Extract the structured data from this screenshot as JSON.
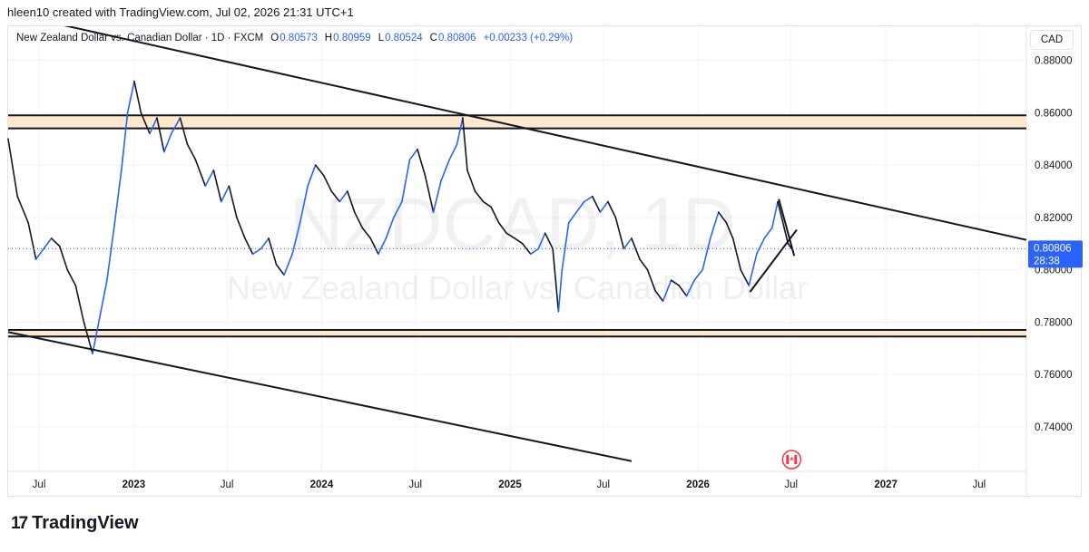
{
  "header": {
    "attribution": "hleen10 created with TradingView.com, Jul 02, 2026 21:31 UTC+1"
  },
  "legend": {
    "symbol": "New Zealand Dollar vs. Canadian Dollar · 1D · FXCM",
    "o_label": "O",
    "o_value": "0.80573",
    "h_label": "H",
    "h_value": "0.80959",
    "l_label": "L",
    "l_value": "0.80524",
    "c_label": "C",
    "c_value": "0.80806",
    "change": "+0.00233 (+0.29%)"
  },
  "currency": "CAD",
  "watermark": {
    "ticker": "NZDCAD, 1D",
    "name": "New Zealand Dollar vs. Canadian Dollar"
  },
  "price_tag": {
    "price": "0.80806",
    "countdown": "28:38"
  },
  "brand": {
    "logo": "17",
    "name": "TradingView"
  },
  "colors": {
    "up": "#2962ff",
    "down": "#131722",
    "zone_fill": "#ffe9cc",
    "drawing": "#131722",
    "price_tag": "#2962ff",
    "flag_red": "#f23645"
  },
  "chart_data": {
    "type": "line",
    "instrument": "NZDCAD",
    "interval": "1D",
    "ylim": [
      0.723,
      0.893
    ],
    "xlim": [
      "2022-05-02",
      "2027-10-01"
    ],
    "y_ticks": [
      "0.88000",
      "0.86000",
      "0.84000",
      "0.82000",
      "0.80000",
      "0.78000",
      "0.76000",
      "0.74000"
    ],
    "x_ticks": [
      {
        "label": "Jul",
        "date": "2022-07-01",
        "bold": false
      },
      {
        "label": "2023",
        "date": "2023-01-01",
        "bold": true
      },
      {
        "label": "Jul",
        "date": "2023-07-01",
        "bold": false
      },
      {
        "label": "2024",
        "date": "2024-01-01",
        "bold": true
      },
      {
        "label": "Jul",
        "date": "2024-07-01",
        "bold": false
      },
      {
        "label": "2025",
        "date": "2025-01-01",
        "bold": true
      },
      {
        "label": "Jul",
        "date": "2025-07-01",
        "bold": false
      },
      {
        "label": "2026",
        "date": "2026-01-01",
        "bold": true
      },
      {
        "label": "Jul",
        "date": "2026-07-01",
        "bold": false
      },
      {
        "label": "2027",
        "date": "2027-01-01",
        "bold": true
      },
      {
        "label": "Jul",
        "date": "2027-07-01",
        "bold": false
      }
    ],
    "series": [
      {
        "values": [
          [
            "2022-05-02",
            0.85
          ],
          [
            "2022-05-20",
            0.828
          ],
          [
            "2022-06-10",
            0.818
          ],
          [
            "2022-06-25",
            0.804
          ],
          [
            "2022-07-10",
            0.808
          ],
          [
            "2022-07-25",
            0.812
          ],
          [
            "2022-08-10",
            0.809
          ],
          [
            "2022-08-25",
            0.8
          ],
          [
            "2022-09-10",
            0.794
          ],
          [
            "2022-09-26",
            0.78
          ],
          [
            "2022-10-13",
            0.768
          ],
          [
            "2022-10-28",
            0.783
          ],
          [
            "2022-11-10",
            0.796
          ],
          [
            "2022-11-25",
            0.818
          ],
          [
            "2022-12-08",
            0.838
          ],
          [
            "2022-12-20",
            0.86
          ],
          [
            "2023-01-02",
            0.872
          ],
          [
            "2023-01-15",
            0.86
          ],
          [
            "2023-02-01",
            0.852
          ],
          [
            "2023-02-15",
            0.858
          ],
          [
            "2023-03-01",
            0.845
          ],
          [
            "2023-03-15",
            0.852
          ],
          [
            "2023-04-01",
            0.858
          ],
          [
            "2023-04-15",
            0.848
          ],
          [
            "2023-05-01",
            0.842
          ],
          [
            "2023-05-20",
            0.832
          ],
          [
            "2023-06-05",
            0.838
          ],
          [
            "2023-06-20",
            0.826
          ],
          [
            "2023-07-05",
            0.832
          ],
          [
            "2023-07-20",
            0.82
          ],
          [
            "2023-08-05",
            0.812
          ],
          [
            "2023-08-20",
            0.806
          ],
          [
            "2023-09-05",
            0.808
          ],
          [
            "2023-09-20",
            0.812
          ],
          [
            "2023-10-05",
            0.802
          ],
          [
            "2023-10-20",
            0.798
          ],
          [
            "2023-11-05",
            0.806
          ],
          [
            "2023-11-20",
            0.818
          ],
          [
            "2023-12-05",
            0.832
          ],
          [
            "2023-12-20",
            0.84
          ],
          [
            "2024-01-05",
            0.836
          ],
          [
            "2024-01-20",
            0.83
          ],
          [
            "2024-02-05",
            0.826
          ],
          [
            "2024-02-20",
            0.83
          ],
          [
            "2024-03-05",
            0.822
          ],
          [
            "2024-03-20",
            0.816
          ],
          [
            "2024-04-05",
            0.812
          ],
          [
            "2024-04-20",
            0.806
          ],
          [
            "2024-05-05",
            0.812
          ],
          [
            "2024-05-20",
            0.82
          ],
          [
            "2024-06-05",
            0.826
          ],
          [
            "2024-06-20",
            0.842
          ],
          [
            "2024-07-05",
            0.846
          ],
          [
            "2024-07-20",
            0.836
          ],
          [
            "2024-08-05",
            0.822
          ],
          [
            "2024-08-20",
            0.834
          ],
          [
            "2024-09-05",
            0.842
          ],
          [
            "2024-09-20",
            0.848
          ],
          [
            "2024-10-01",
            0.858
          ],
          [
            "2024-10-10",
            0.838
          ],
          [
            "2024-10-25",
            0.83
          ],
          [
            "2024-11-10",
            0.826
          ],
          [
            "2024-11-25",
            0.824
          ],
          [
            "2024-12-10",
            0.818
          ],
          [
            "2024-12-25",
            0.814
          ],
          [
            "2025-01-10",
            0.812
          ],
          [
            "2025-01-25",
            0.81
          ],
          [
            "2025-02-10",
            0.806
          ],
          [
            "2025-02-25",
            0.808
          ],
          [
            "2025-03-10",
            0.814
          ],
          [
            "2025-03-25",
            0.808
          ],
          [
            "2025-04-05",
            0.784
          ],
          [
            "2025-04-12",
            0.8
          ],
          [
            "2025-04-25",
            0.818
          ],
          [
            "2025-05-10",
            0.822
          ],
          [
            "2025-05-25",
            0.826
          ],
          [
            "2025-06-10",
            0.828
          ],
          [
            "2025-06-25",
            0.822
          ],
          [
            "2025-07-10",
            0.826
          ],
          [
            "2025-07-25",
            0.82
          ],
          [
            "2025-08-10",
            0.808
          ],
          [
            "2025-08-25",
            0.812
          ],
          [
            "2025-09-10",
            0.804
          ],
          [
            "2025-09-25",
            0.8
          ],
          [
            "2025-10-10",
            0.792
          ],
          [
            "2025-10-25",
            0.788
          ],
          [
            "2025-11-10",
            0.796
          ],
          [
            "2025-11-25",
            0.794
          ],
          [
            "2025-12-10",
            0.79
          ],
          [
            "2025-12-25",
            0.796
          ],
          [
            "2026-01-10",
            0.8
          ],
          [
            "2026-01-25",
            0.812
          ],
          [
            "2026-02-10",
            0.822
          ],
          [
            "2026-02-25",
            0.818
          ],
          [
            "2026-03-10",
            0.812
          ],
          [
            "2026-03-25",
            0.8
          ],
          [
            "2026-04-10",
            0.794
          ],
          [
            "2026-04-25",
            0.806
          ],
          [
            "2026-05-10",
            0.812
          ],
          [
            "2026-05-25",
            0.816
          ],
          [
            "2026-06-05",
            0.826
          ],
          [
            "2026-06-15",
            0.818
          ],
          [
            "2026-06-25",
            0.81
          ],
          [
            "2026-07-02",
            0.808
          ]
        ]
      }
    ],
    "zones": [
      {
        "from": 0.854,
        "to": 0.859
      },
      {
        "from": 0.7745,
        "to": 0.777
      }
    ],
    "trendlines": [
      {
        "from": [
          "2022-05-02",
          0.8981
        ],
        "to": [
          "2027-10-01",
          0.8114
        ]
      },
      {
        "from": [
          "2022-05-02",
          0.7762
        ],
        "to": [
          "2025-08-25",
          0.7269
        ]
      },
      {
        "from": [
          "2026-06-07",
          0.827
        ],
        "to": [
          "2026-07-07",
          0.8053
        ]
      },
      {
        "from": [
          "2026-04-12",
          0.7915
        ],
        "to": [
          "2026-07-12",
          0.8153
        ]
      }
    ],
    "last_price": 0.80806,
    "last_date": "2026-07-02",
    "event_marker": {
      "date": "2026-07-02",
      "type": "economic-event-flag"
    }
  }
}
